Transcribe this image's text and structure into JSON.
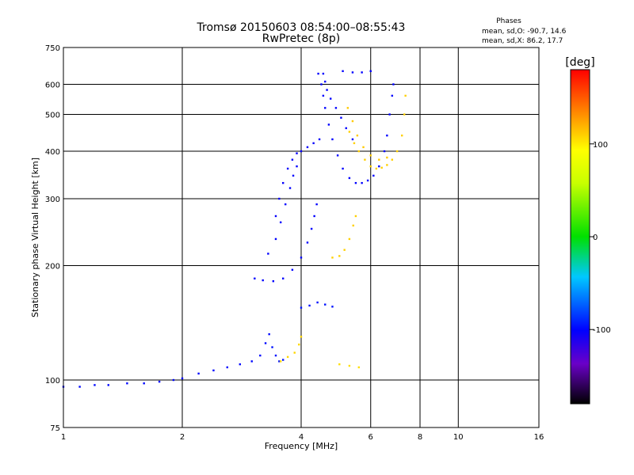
{
  "chart_data": {
    "type": "scatter",
    "title": "Tromsø 20150603 08:54:00–08:55:43",
    "subtitle": "RwPretec (8p)",
    "xlabel": "Frequency [MHz]",
    "ylabel": "Stationary phase Virtual Height [km]",
    "xscale": "log",
    "yscale": "log",
    "xlim": [
      1,
      16
    ],
    "ylim": [
      75,
      750
    ],
    "xticks": [
      1,
      2,
      4,
      6,
      8,
      10,
      16
    ],
    "xtick_labels": [
      "1",
      "2",
      "4",
      "6",
      "8",
      "10",
      "16"
    ],
    "yticks": [
      75,
      100,
      200,
      300,
      400,
      500,
      600,
      750
    ],
    "ytick_labels": [
      "75",
      "100",
      "200",
      "300",
      "400",
      "500",
      "600",
      "750"
    ],
    "grid": true,
    "stats": {
      "heading": "Phases",
      "line_o": "mean, sd,O: -90.7, 14.6",
      "line_x": "mean, sd,X:  86.2, 17.7"
    },
    "colorbar": {
      "label": "[deg]",
      "range": [
        -180,
        180
      ],
      "ticks": [
        100,
        0,
        -100
      ],
      "tick_labels": [
        "100",
        "0",
        "-100"
      ],
      "placement": "right"
    },
    "traces": [
      {
        "phase": -98,
        "points": [
          [
            1.0,
            96
          ],
          [
            1.1,
            96
          ],
          [
            1.2,
            97
          ],
          [
            1.3,
            97
          ],
          [
            1.45,
            98
          ],
          [
            1.6,
            98
          ],
          [
            1.75,
            99
          ],
          [
            1.9,
            100
          ],
          [
            2.0,
            101
          ],
          [
            2.2,
            104
          ],
          [
            2.4,
            106
          ],
          [
            2.6,
            108
          ],
          [
            2.8,
            110
          ],
          [
            3.0,
            112
          ],
          [
            3.15,
            116
          ],
          [
            3.25,
            125
          ],
          [
            3.32,
            132
          ]
        ]
      },
      {
        "phase": -95,
        "points": [
          [
            3.38,
            122
          ],
          [
            3.45,
            116
          ],
          [
            3.52,
            112
          ],
          [
            3.6,
            113
          ]
        ]
      },
      {
        "phase": 108,
        "points": [
          [
            3.55,
            112
          ],
          [
            3.7,
            115
          ],
          [
            3.85,
            118
          ],
          [
            3.95,
            124
          ],
          [
            4.0,
            130
          ]
        ]
      },
      {
        "phase": -100,
        "points": [
          [
            3.05,
            185
          ],
          [
            3.2,
            183
          ],
          [
            3.4,
            182
          ],
          [
            3.6,
            185
          ],
          [
            3.8,
            195
          ],
          [
            4.0,
            210
          ],
          [
            4.15,
            230
          ],
          [
            4.25,
            250
          ],
          [
            4.32,
            270
          ],
          [
            4.38,
            290
          ]
        ]
      },
      {
        "phase": -100,
        "points": [
          [
            3.3,
            215
          ],
          [
            3.45,
            235
          ],
          [
            3.55,
            260
          ],
          [
            3.65,
            290
          ],
          [
            3.75,
            320
          ],
          [
            3.82,
            345
          ],
          [
            3.9,
            365
          ]
        ]
      },
      {
        "phase": -102,
        "points": [
          [
            3.45,
            270
          ],
          [
            3.52,
            300
          ],
          [
            3.6,
            330
          ],
          [
            3.7,
            360
          ],
          [
            3.8,
            380
          ],
          [
            3.9,
            395
          ],
          [
            4.0,
            400
          ],
          [
            4.15,
            410
          ],
          [
            4.3,
            420
          ],
          [
            4.45,
            430
          ]
        ]
      },
      {
        "phase": -100,
        "points": [
          [
            4.42,
            640
          ],
          [
            4.5,
            600
          ],
          [
            4.55,
            560
          ],
          [
            4.6,
            520
          ],
          [
            4.7,
            470
          ],
          [
            4.8,
            430
          ],
          [
            4.95,
            390
          ],
          [
            5.1,
            360
          ],
          [
            5.3,
            340
          ],
          [
            5.5,
            330
          ],
          [
            5.7,
            330
          ],
          [
            5.9,
            335
          ],
          [
            6.1,
            345
          ],
          [
            6.3,
            365
          ],
          [
            6.5,
            400
          ],
          [
            6.6,
            440
          ],
          [
            6.7,
            500
          ],
          [
            6.8,
            560
          ],
          [
            6.85,
            600
          ]
        ]
      },
      {
        "phase": -100,
        "points": [
          [
            4.55,
            640
          ],
          [
            4.6,
            610
          ],
          [
            4.65,
            580
          ],
          [
            4.75,
            550
          ],
          [
            4.9,
            520
          ],
          [
            5.05,
            490
          ],
          [
            5.2,
            460
          ],
          [
            5.4,
            430
          ]
        ]
      },
      {
        "phase": -100,
        "points": [
          [
            5.1,
            650
          ],
          [
            5.4,
            645
          ],
          [
            5.7,
            645
          ],
          [
            6.0,
            650
          ]
        ]
      },
      {
        "phase": 110,
        "points": [
          [
            4.8,
            210
          ],
          [
            5.0,
            212
          ],
          [
            5.15,
            220
          ],
          [
            5.3,
            235
          ],
          [
            5.42,
            255
          ],
          [
            5.5,
            270
          ]
        ]
      },
      {
        "phase": 110,
        "points": [
          [
            5.3,
            450
          ],
          [
            5.45,
            420
          ],
          [
            5.6,
            400
          ],
          [
            5.8,
            380
          ],
          [
            6.0,
            365
          ],
          [
            6.2,
            360
          ],
          [
            6.4,
            362
          ],
          [
            6.6,
            368
          ],
          [
            6.8,
            380
          ],
          [
            7.0,
            400
          ],
          [
            7.2,
            440
          ],
          [
            7.3,
            500
          ],
          [
            7.35,
            560
          ]
        ]
      },
      {
        "phase": 112,
        "points": [
          [
            5.25,
            520
          ],
          [
            5.4,
            480
          ],
          [
            5.55,
            440
          ],
          [
            5.75,
            410
          ],
          [
            6.0,
            390
          ],
          [
            6.3,
            380
          ],
          [
            6.6,
            385
          ]
        ]
      },
      {
        "phase": -95,
        "points": [
          [
            4.0,
            155
          ],
          [
            4.2,
            157
          ],
          [
            4.4,
            160
          ],
          [
            4.6,
            158
          ],
          [
            4.8,
            156
          ]
        ]
      },
      {
        "phase": 105,
        "points": [
          [
            5.0,
            110
          ],
          [
            5.3,
            109
          ],
          [
            5.6,
            108
          ]
        ]
      }
    ]
  }
}
